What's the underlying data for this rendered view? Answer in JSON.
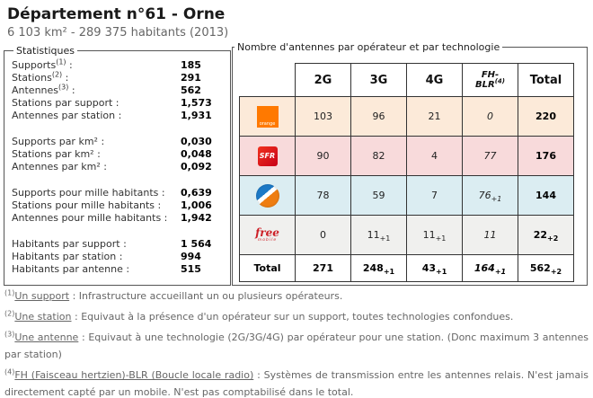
{
  "header": {
    "title": "Département n°61 - Orne",
    "subtitle": "6 103 km² - 289 375 habitants (2013)"
  },
  "stats": {
    "legend": "Statistiques",
    "items": [
      {
        "label": "Supports",
        "sup": "(1)",
        "post": " :",
        "value": "185"
      },
      {
        "label": "Stations",
        "sup": "(2)",
        "post": " :",
        "value": "291"
      },
      {
        "label": "Antennes",
        "sup": "(3)",
        "post": " :",
        "value": "562"
      },
      {
        "label": "Stations par support",
        "sup": "",
        "post": " :",
        "value": "1,573"
      },
      {
        "label": "Antennes par station",
        "sup": "",
        "post": " :",
        "value": "1,931"
      },
      {
        "label": "Supports par km²",
        "sup": "",
        "post": " :",
        "value": "0,030"
      },
      {
        "label": "Stations par km²",
        "sup": "",
        "post": " :",
        "value": "0,048"
      },
      {
        "label": "Antennes par km²",
        "sup": "",
        "post": " :",
        "value": "0,092"
      },
      {
        "label": "Supports pour mille habitants",
        "sup": "",
        "post": " :",
        "value": "0,639"
      },
      {
        "label": "Stations pour mille habitants",
        "sup": "",
        "post": " :",
        "value": "1,006"
      },
      {
        "label": "Antennes pour mille habitants",
        "sup": "",
        "post": " :",
        "value": "1,942"
      },
      {
        "label": "Habitants par support",
        "sup": "",
        "post": " :",
        "value": "1 564"
      },
      {
        "label": "Habitants par station",
        "sup": "",
        "post": " :",
        "value": "994"
      },
      {
        "label": "Habitants par antenne",
        "sup": "",
        "post": " :",
        "value": "515"
      }
    ]
  },
  "antennas": {
    "legend": "Nombre d'antennes par opérateur et par technologie",
    "columns": {
      "g2": "2G",
      "g3": "3G",
      "g4": "4G",
      "fh_line1": "FH-",
      "fh_line2": "BLR",
      "fh_sup": "(4)",
      "total": "Total"
    },
    "rows": [
      {
        "operator": "Orange",
        "logo_text": "orange",
        "brand_color": "#ff7900",
        "row_color": "#fcead9",
        "values": [
          {
            "v": "103",
            "s": ""
          },
          {
            "v": "96",
            "s": ""
          },
          {
            "v": "21",
            "s": ""
          },
          {
            "v": "0",
            "s": ""
          },
          {
            "v": "220",
            "s": ""
          }
        ]
      },
      {
        "operator": "SFR",
        "logo_text": "SFR",
        "brand_color": "#e2001a",
        "row_color": "#f8dadb",
        "values": [
          {
            "v": "90",
            "s": ""
          },
          {
            "v": "82",
            "s": ""
          },
          {
            "v": "4",
            "s": ""
          },
          {
            "v": "77",
            "s": ""
          },
          {
            "v": "176",
            "s": ""
          }
        ]
      },
      {
        "operator": "Bouygues Telecom",
        "logo_text": "",
        "brand_color": "#1d79c6",
        "row_color": "#dbedf2",
        "values": [
          {
            "v": "78",
            "s": ""
          },
          {
            "v": "59",
            "s": ""
          },
          {
            "v": "7",
            "s": ""
          },
          {
            "v": "76",
            "s": "+1"
          },
          {
            "v": "144",
            "s": ""
          }
        ]
      },
      {
        "operator": "Free Mobile",
        "logo_text": "free",
        "logo_subtext": "mobile",
        "brand_color": "#cd1f26",
        "row_color": "#f0f0ee",
        "values": [
          {
            "v": "0",
            "s": ""
          },
          {
            "v": "11",
            "s": "+1"
          },
          {
            "v": "11",
            "s": "+1"
          },
          {
            "v": "11",
            "s": ""
          },
          {
            "v": "22",
            "s": "+2"
          }
        ]
      }
    ],
    "total_row": {
      "label": "Total",
      "values": [
        {
          "v": "271",
          "s": ""
        },
        {
          "v": "248",
          "s": "+1"
        },
        {
          "v": "43",
          "s": "+1"
        },
        {
          "v": "164",
          "s": "+1"
        },
        {
          "v": "562",
          "s": "+2"
        }
      ]
    }
  },
  "footnotes": [
    {
      "sup": "(1)",
      "term": "Un support",
      "text": " : Infrastructure accueillant un ou plusieurs opérateurs."
    },
    {
      "sup": "(2)",
      "term": "Une station",
      "text": " : Equivaut à la présence d'un opérateur sur un support, toutes technologies confondues."
    },
    {
      "sup": "(3)",
      "term": "Une antenne",
      "text": " : Equivaut à une technologie (2G/3G/4G) par opérateur pour une station. (Donc maximum 3 antennes par station)"
    },
    {
      "sup": "(4)",
      "term": "FH (Faisceau hertzien)-BLR (Boucle locale radio)",
      "text": " : Systèmes de transmission entre les antennes relais. N'est jamais directement capté par un mobile. N'est pas comptabilisé dans le total."
    }
  ]
}
